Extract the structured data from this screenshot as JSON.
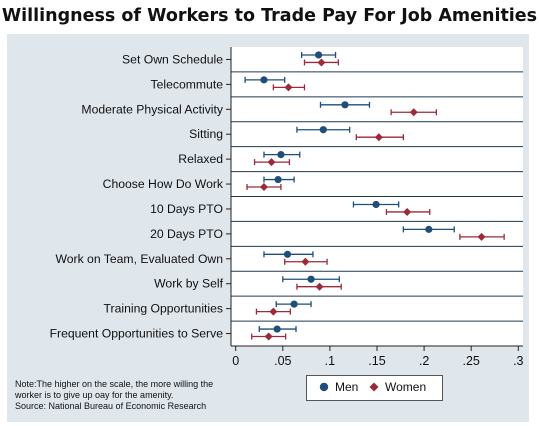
{
  "chart_data": {
    "type": "scatter",
    "title": "Willingness of Workers to Trade Pay For Job Amenities",
    "xlabel": "",
    "ylabel": "",
    "xlim": [
      -0.005,
      0.305
    ],
    "x_ticks": [
      "0",
      ".05",
      ".1",
      ".15",
      ".2",
      ".25",
      ".3"
    ],
    "x_tick_values": [
      0,
      0.05,
      0.1,
      0.15,
      0.2,
      0.25,
      0.3
    ],
    "grid": "horizontal",
    "legend_position": "bottom",
    "categories": [
      "Set Own Schedule",
      "Telecommute",
      "Moderate Physical Activity",
      "Sitting",
      "Relaxed",
      "Choose How Do Work",
      "10 Days PTO",
      "20 Days PTO",
      "Work on Team, Evaluated Own",
      "Work by Self",
      "Training Opportunities",
      "Frequent Opportunities to Serve"
    ],
    "series": [
      {
        "name": "Men",
        "color": "#1f4e79",
        "marker": "circle",
        "values": [
          0.088,
          0.03,
          0.116,
          0.093,
          0.048,
          0.045,
          0.149,
          0.205,
          0.055,
          0.08,
          0.062,
          0.044
        ],
        "ci_low": [
          0.07,
          0.01,
          0.09,
          0.065,
          0.03,
          0.03,
          0.125,
          0.178,
          0.03,
          0.05,
          0.043,
          0.025
        ],
        "ci_high": [
          0.106,
          0.052,
          0.142,
          0.121,
          0.068,
          0.062,
          0.173,
          0.232,
          0.082,
          0.11,
          0.08,
          0.064
        ]
      },
      {
        "name": "Women",
        "color": "#9b2a3a",
        "marker": "diamond",
        "values": [
          0.091,
          0.056,
          0.189,
          0.152,
          0.038,
          0.03,
          0.182,
          0.261,
          0.074,
          0.089,
          0.04,
          0.035
        ],
        "ci_low": [
          0.073,
          0.04,
          0.165,
          0.128,
          0.02,
          0.012,
          0.16,
          0.238,
          0.052,
          0.065,
          0.022,
          0.017
        ],
        "ci_high": [
          0.109,
          0.073,
          0.213,
          0.178,
          0.057,
          0.048,
          0.206,
          0.285,
          0.097,
          0.112,
          0.058,
          0.053
        ]
      }
    ]
  },
  "note": {
    "line1": "Note:The higher on the scale, the more willing the",
    "line2": "worker is to give up oay for the amenity.",
    "source": "Source: National Bureau of Economic Research"
  },
  "legend": {
    "men_label": "Men",
    "women_label": "Women"
  }
}
